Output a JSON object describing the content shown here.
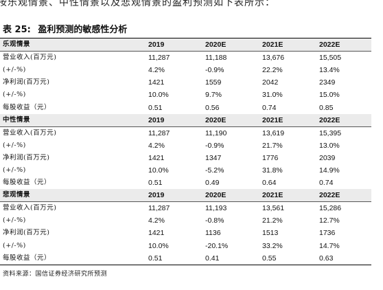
{
  "intro_text": "按乐观情景、中性情景以及悲观情景的盈利预测如下表所示：",
  "caption": {
    "number": "表 25:",
    "title": "盈利预测的敏感性分析"
  },
  "scenarios": [
    {
      "name": "乐观情景",
      "years": [
        "2019",
        "2020E",
        "2021E",
        "2022E"
      ],
      "rows": [
        {
          "label": "营业收入(百万元)",
          "values": [
            "11,287",
            "11,188",
            "13,676",
            "15,505"
          ]
        },
        {
          "label": "(+/-%)",
          "values": [
            "4.2%",
            "-0.9%",
            "22.2%",
            "13.4%"
          ]
        },
        {
          "label": "净利润(百万元)",
          "values": [
            "1421",
            "1559",
            "2042",
            "2349"
          ]
        },
        {
          "label": "(+/-%)",
          "values": [
            "10.0%",
            "9.7%",
            "31.0%",
            "15.0%"
          ]
        },
        {
          "label": "每股收益（元）",
          "values": [
            "0.51",
            "0.56",
            "0.74",
            "0.85"
          ]
        }
      ]
    },
    {
      "name": "中性情景",
      "years": [
        "2019",
        "2020E",
        "2021E",
        "2022E"
      ],
      "rows": [
        {
          "label": "营业收入(百万元)",
          "values": [
            "11,287",
            "11,190",
            "13,619",
            "15,395"
          ]
        },
        {
          "label": "(+/-%)",
          "values": [
            "4.2%",
            "-0.9%",
            "21.7%",
            "13.0%"
          ]
        },
        {
          "label": "净利润(百万元)",
          "values": [
            "1421",
            "1347",
            "1776",
            "2039"
          ]
        },
        {
          "label": "(+/-%)",
          "values": [
            "10.0%",
            "-5.2%",
            "31.8%",
            "14.9%"
          ]
        },
        {
          "label": "每股收益（元）",
          "values": [
            "0.51",
            "0.49",
            "0.64",
            "0.74"
          ]
        }
      ]
    },
    {
      "name": "悲观情景",
      "years": [
        "2019",
        "2020E",
        "2021E",
        "2022E"
      ],
      "rows": [
        {
          "label": "营业收入(百万元)",
          "values": [
            "11,287",
            "11,193",
            "13,561",
            "15,286"
          ]
        },
        {
          "label": "(+/-%)",
          "values": [
            "4.2%",
            "-0.8%",
            "21.2%",
            "12.7%"
          ]
        },
        {
          "label": "净利润(百万元)",
          "values": [
            "1421",
            "1136",
            "1513",
            "1736"
          ]
        },
        {
          "label": "(+/-%)",
          "values": [
            "10.0%",
            "-20.1%",
            "33.2%",
            "14.7%"
          ]
        },
        {
          "label": "每股收益（元）",
          "values": [
            "0.51",
            "0.41",
            "0.55",
            "0.63"
          ]
        }
      ]
    }
  ],
  "source": "资料来源：国信证券经济研究所预测"
}
